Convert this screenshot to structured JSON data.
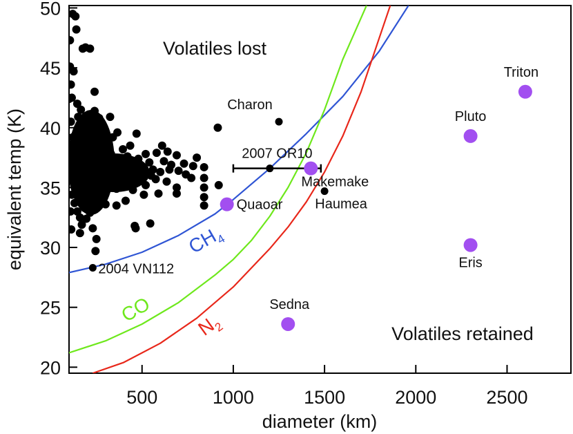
{
  "chart_data": {
    "type": "scatter",
    "xlabel": "diameter (km)",
    "ylabel": "equivalent temp (K)",
    "xlim": [
      100,
      2850
    ],
    "ylim": [
      19.5,
      50.2
    ],
    "xticks": [
      500,
      1000,
      1500,
      2000,
      2500
    ],
    "yticks": [
      20,
      25,
      30,
      35,
      40,
      45,
      50
    ],
    "region_labels": {
      "upper": "Volatiles lost",
      "lower": "Volatiles retained"
    },
    "curves": [
      {
        "name": "CH4",
        "label_base": "CH",
        "label_sub": "4",
        "color": "#2f55d4",
        "points": [
          [
            100,
            27.9
          ],
          [
            300,
            28.6
          ],
          [
            500,
            29.6
          ],
          [
            700,
            31.0
          ],
          [
            900,
            32.8
          ],
          [
            1000,
            34.0
          ],
          [
            1200,
            36.6
          ],
          [
            1400,
            39.5
          ],
          [
            1600,
            42.6
          ],
          [
            1800,
            46.4
          ],
          [
            1960,
            50.2
          ]
        ]
      },
      {
        "name": "CO",
        "label_base": "CO",
        "label_sub": "",
        "color": "#6ee81c",
        "points": [
          [
            100,
            21.2
          ],
          [
            300,
            22.2
          ],
          [
            500,
            23.6
          ],
          [
            700,
            25.4
          ],
          [
            900,
            27.7
          ],
          [
            1000,
            29.0
          ],
          [
            1100,
            30.6
          ],
          [
            1200,
            32.6
          ],
          [
            1300,
            35.0
          ],
          [
            1400,
            37.9
          ],
          [
            1500,
            41.5
          ],
          [
            1600,
            45.7
          ],
          [
            1730,
            50.2
          ]
        ]
      },
      {
        "name": "N2",
        "label_base": "N",
        "label_sub": "2",
        "color": "#e8271a",
        "points": [
          [
            230,
            19.5
          ],
          [
            400,
            20.4
          ],
          [
            600,
            22.0
          ],
          [
            800,
            24.1
          ],
          [
            1000,
            26.7
          ],
          [
            1200,
            29.9
          ],
          [
            1300,
            31.7
          ],
          [
            1400,
            33.8
          ],
          [
            1500,
            36.3
          ],
          [
            1600,
            39.3
          ],
          [
            1700,
            43.0
          ],
          [
            1800,
            47.5
          ],
          [
            1860,
            50.2
          ]
        ]
      }
    ],
    "labeled_objects": [
      {
        "name": "Triton",
        "x": 2600,
        "y": 43.0,
        "kind": "large"
      },
      {
        "name": "Pluto",
        "x": 2300,
        "y": 39.3,
        "kind": "large"
      },
      {
        "name": "Eris",
        "x": 2300,
        "y": 30.2,
        "kind": "large"
      },
      {
        "name": "Sedna",
        "x": 1300,
        "y": 23.6,
        "kind": "large"
      },
      {
        "name": "Quaoar",
        "x": 965,
        "y": 33.6,
        "kind": "large"
      },
      {
        "name": "Makemake",
        "x": 1425,
        "y": 36.6,
        "kind": "large"
      },
      {
        "name": "Charon",
        "x": 1250,
        "y": 40.5,
        "kind": "small"
      },
      {
        "name": "2007 OR10",
        "x": 1200,
        "y": 36.6,
        "kind": "small",
        "xerr": [
          1000,
          1480
        ]
      },
      {
        "name": "Haumea",
        "x": 1500,
        "y": 34.7,
        "kind": "small"
      },
      {
        "name": "2004 VN112",
        "x": 230,
        "y": 28.3,
        "kind": "small"
      }
    ],
    "small_objects": [
      [
        120,
        49.5
      ],
      [
        135,
        49.3
      ],
      [
        140,
        48.2
      ],
      [
        105,
        47.3
      ],
      [
        175,
        46.6
      ],
      [
        190,
        46.7
      ],
      [
        215,
        46.6
      ],
      [
        105,
        45.1
      ],
      [
        125,
        44.7
      ],
      [
        110,
        43.6
      ],
      [
        100,
        42.4
      ],
      [
        115,
        42.5
      ],
      [
        240,
        43.0
      ],
      [
        240,
        41.4
      ],
      [
        265,
        40.8
      ],
      [
        325,
        40.9
      ],
      [
        295,
        39.8
      ],
      [
        340,
        39.2
      ],
      [
        365,
        39.6
      ],
      [
        395,
        38.2
      ],
      [
        300,
        38.4
      ],
      [
        420,
        37.6
      ],
      [
        480,
        37.4
      ],
      [
        520,
        37.8
      ],
      [
        540,
        37.1
      ],
      [
        580,
        37.9
      ],
      [
        610,
        38.5
      ],
      [
        640,
        38.0
      ],
      [
        690,
        37.7
      ],
      [
        470,
        39.5
      ],
      [
        220,
        36.5
      ],
      [
        265,
        36.0
      ],
      [
        320,
        35.8
      ],
      [
        350,
        36.8
      ],
      [
        430,
        36.5
      ],
      [
        455,
        35.9
      ],
      [
        500,
        36.6
      ],
      [
        560,
        36.5
      ],
      [
        600,
        36.3
      ],
      [
        650,
        36.5
      ],
      [
        700,
        36.4
      ],
      [
        730,
        37.0
      ],
      [
        780,
        36.8
      ],
      [
        800,
        37.5
      ],
      [
        690,
        35.0
      ],
      [
        690,
        34.5
      ],
      [
        590,
        34.5
      ],
      [
        510,
        34.4
      ],
      [
        450,
        34.8
      ],
      [
        410,
        33.9
      ],
      [
        360,
        33.5
      ],
      [
        300,
        33.6
      ],
      [
        255,
        33.4
      ],
      [
        215,
        32.9
      ],
      [
        160,
        32.5
      ],
      [
        145,
        33.0
      ],
      [
        195,
        32.4
      ],
      [
        170,
        31.9
      ],
      [
        160,
        31.2
      ],
      [
        230,
        31.6
      ],
      [
        460,
        31.8
      ],
      [
        465,
        31.6
      ],
      [
        545,
        32.0
      ],
      [
        250,
        30.7
      ],
      [
        245,
        29.7
      ],
      [
        840,
        36.7
      ],
      [
        840,
        35.8
      ],
      [
        840,
        35.0
      ],
      [
        840,
        34.2
      ],
      [
        840,
        33.5
      ],
      [
        915,
        40.0
      ],
      [
        920,
        35.2
      ],
      [
        110,
        40.5
      ],
      [
        120,
        39.2
      ],
      [
        150,
        38.6
      ],
      [
        175,
        37.8
      ],
      [
        200,
        37.2
      ],
      [
        130,
        36.2
      ],
      [
        160,
        35.4
      ],
      [
        190,
        34.9
      ],
      [
        230,
        35.5
      ],
      [
        280,
        37.0
      ],
      [
        330,
        37.8
      ],
      [
        380,
        36.1
      ],
      [
        260,
        38.9
      ],
      [
        195,
        40.0
      ],
      [
        150,
        40.9
      ],
      [
        125,
        38.4
      ],
      [
        140,
        36.7
      ],
      [
        105,
        35.8
      ],
      [
        175,
        36.1
      ],
      [
        210,
        38.1
      ],
      [
        240,
        39.0
      ],
      [
        390,
        37.3
      ],
      [
        435,
        38.5
      ],
      [
        550,
        36.0
      ],
      [
        620,
        37.2
      ],
      [
        115,
        34.4
      ],
      [
        130,
        33.7
      ],
      [
        185,
        33.3
      ],
      [
        225,
        34.2
      ],
      [
        270,
        34.6
      ],
      [
        310,
        35.3
      ],
      [
        360,
        34.9
      ],
      [
        400,
        35.6
      ],
      [
        165,
        41.5
      ],
      [
        205,
        41.0
      ],
      [
        185,
        39.3
      ],
      [
        145,
        42.0
      ],
      [
        100,
        38.0
      ],
      [
        108,
        33.0
      ],
      [
        112,
        31.5
      ],
      [
        150,
        37.1
      ],
      [
        170,
        34.0
      ],
      [
        290,
        36.3
      ],
      [
        345,
        36.3
      ],
      [
        370,
        35.3
      ],
      [
        410,
        36.9
      ],
      [
        460,
        37.0
      ],
      [
        520,
        35.2
      ],
      [
        575,
        35.7
      ],
      [
        635,
        35.5
      ],
      [
        660,
        36.9
      ],
      [
        740,
        36.1
      ],
      [
        770,
        35.8
      ]
    ]
  }
}
